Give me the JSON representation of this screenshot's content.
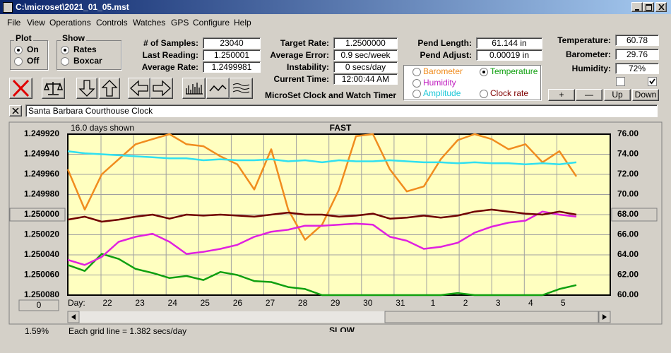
{
  "window": {
    "title": "C:\\microset\\2021_01_05.mst"
  },
  "menu": [
    "File",
    "View",
    "Operations",
    "Controls",
    "Watches",
    "GPS",
    "Configure",
    "Help"
  ],
  "plot_group": {
    "title": "Plot",
    "options": [
      "On",
      "Off"
    ],
    "selected": 0
  },
  "show_group": {
    "title": "Show",
    "options": [
      "Rates",
      "Boxcar"
    ],
    "selected": 0
  },
  "fields": [
    {
      "label": "# of Samples:",
      "value": "23040"
    },
    {
      "label": "Last Reading:",
      "value": "1.250001"
    },
    {
      "label": "Average Rate:",
      "value": "1.2499981"
    },
    {
      "label": "Target Rate:",
      "value": "1.2500000"
    },
    {
      "label": "Average Error:",
      "value": "0.9 sec/week"
    },
    {
      "label": "Instability:",
      "value": "0 secs/day"
    },
    {
      "label": "Current Time:",
      "value": "12:00:44 AM"
    },
    {
      "label": "Pend Length:",
      "value": "61.144 in"
    },
    {
      "label": "Pend Adjust:",
      "value": "0.00019 in"
    },
    {
      "label": "Temperature:",
      "value": "60.78"
    },
    {
      "label": "Barometer:",
      "value": "29.76"
    },
    {
      "label": "Humidity:",
      "value": "72%"
    }
  ],
  "app_name": "MicroSet Clock and Watch Timer",
  "graph_options": [
    {
      "label": "Barometer",
      "color": "#f08c1e"
    },
    {
      "label": "Temperature",
      "color": "#10a010"
    },
    {
      "label": "Humidity",
      "color": "#c020c0"
    },
    {
      "label": "Amplitude",
      "color": "#20c8d8"
    },
    {
      "label": "Clock rate",
      "color": "#800000"
    }
  ],
  "graph_selected": 1,
  "checkboxes": [
    false,
    true
  ],
  "adjust_buttons": [
    "+",
    "—",
    "Up",
    "Down"
  ],
  "clock_name": "Santa Barbara Courthouse Clock",
  "chart": {
    "days_shown": "16.0 days shown",
    "top_label": "FAST",
    "bottom_label": "SLOW",
    "day_prefix": "Day:",
    "days": [
      "22",
      "23",
      "24",
      "25",
      "26",
      "27",
      "28",
      "29",
      "30",
      "31",
      "1",
      "2",
      "3",
      "4",
      "5"
    ],
    "offset_button": "0",
    "xlim": [
      0,
      16
    ],
    "ylim": [
      1.25008,
      1.24992
    ],
    "yticks": [
      {
        "value": 1.24992,
        "label": "1.249920"
      },
      {
        "value": 1.24994,
        "label": "1.249940"
      },
      {
        "value": 1.24996,
        "label": "1.249960"
      },
      {
        "value": 1.24998,
        "label": "1.249980"
      },
      {
        "value": 1.25,
        "label": "1.250000"
      },
      {
        "value": 1.25002,
        "label": "1.250020"
      },
      {
        "value": 1.25004,
        "label": "1.250040"
      },
      {
        "value": 1.25006,
        "label": "1.250060"
      },
      {
        "value": 1.25008,
        "label": "1.250080"
      }
    ],
    "y2lim": [
      60,
      76
    ],
    "y2ticks": [
      {
        "value": 76,
        "label": "76.00"
      },
      {
        "value": 74,
        "label": "74.00"
      },
      {
        "value": 72,
        "label": "72.00"
      },
      {
        "value": 70,
        "label": "70.00"
      },
      {
        "value": 68,
        "label": "68.00"
      },
      {
        "value": 66,
        "label": "66.00"
      },
      {
        "value": 64,
        "label": "64.00"
      },
      {
        "value": 62,
        "label": "62.00"
      },
      {
        "value": 60,
        "label": "60.00"
      }
    ],
    "x": [
      0,
      0.5,
      1,
      1.5,
      2,
      2.5,
      3,
      3.5,
      4,
      4.5,
      5,
      5.5,
      6,
      6.5,
      7,
      7.5,
      8,
      8.5,
      9,
      9.5,
      10,
      10.5,
      11,
      11.5,
      12,
      12.5,
      13,
      13.5,
      14,
      14.5,
      15
    ],
    "series": [
      {
        "color": "#f08c1e",
        "axis": "y2",
        "values": [
          72.5,
          68.5,
          72.0,
          73.5,
          75.0,
          75.5,
          76.0,
          75.0,
          74.8,
          73.8,
          73.0,
          70.5,
          74.5,
          68.5,
          65.5,
          67.0,
          70.5,
          75.8,
          76.0,
          72.5,
          70.3,
          70.8,
          73.5,
          75.4,
          76.0,
          75.5,
          74.5,
          75.0,
          73.2,
          74.3,
          71.8
        ]
      },
      {
        "color": "#10a010",
        "axis": "y2",
        "values": [
          63.0,
          62.4,
          64.1,
          63.6,
          62.6,
          62.2,
          61.7,
          61.9,
          61.5,
          62.3,
          62.0,
          61.4,
          61.3,
          60.8,
          60.6,
          60.0,
          60.0,
          60.0,
          60.0,
          60.0,
          60.0,
          60.0,
          60.0,
          60.2,
          60.0,
          60.0,
          60.0,
          60.0,
          60.0,
          60.6,
          61.0
        ]
      },
      {
        "color": "#e020e0",
        "axis": "y2",
        "values": [
          63.5,
          63.0,
          63.8,
          65.3,
          65.8,
          66.1,
          65.3,
          64.1,
          64.3,
          64.6,
          65.0,
          65.8,
          66.3,
          66.5,
          66.9,
          66.9,
          67.0,
          67.1,
          67.0,
          65.8,
          65.4,
          64.6,
          64.8,
          65.2,
          66.2,
          66.8,
          67.2,
          67.4,
          68.3,
          68.0,
          67.8
        ]
      },
      {
        "color": "#30e0f0",
        "axis": "y2",
        "values": [
          74.3,
          74.1,
          74.0,
          73.9,
          73.8,
          73.7,
          73.6,
          73.6,
          73.4,
          73.5,
          73.4,
          73.4,
          73.5,
          73.3,
          73.4,
          73.2,
          73.4,
          73.3,
          73.3,
          73.4,
          73.3,
          73.2,
          73.2,
          73.1,
          73.2,
          73.1,
          73.1,
          73.0,
          73.1,
          73.0,
          73.2
        ]
      },
      {
        "color": "#700000",
        "axis": "y2",
        "values": [
          67.5,
          67.8,
          67.3,
          67.5,
          67.8,
          68.0,
          67.6,
          68.0,
          67.9,
          68.0,
          67.9,
          67.8,
          68.0,
          68.2,
          68.0,
          68.0,
          67.8,
          67.9,
          68.1,
          67.6,
          67.7,
          67.9,
          67.7,
          67.9,
          68.3,
          68.5,
          68.3,
          68.1,
          68.0,
          68.3,
          68.0
        ]
      }
    ]
  },
  "status": {
    "percent": "1.59%",
    "grid_note": "Each grid line = 1.382 secs/day"
  }
}
